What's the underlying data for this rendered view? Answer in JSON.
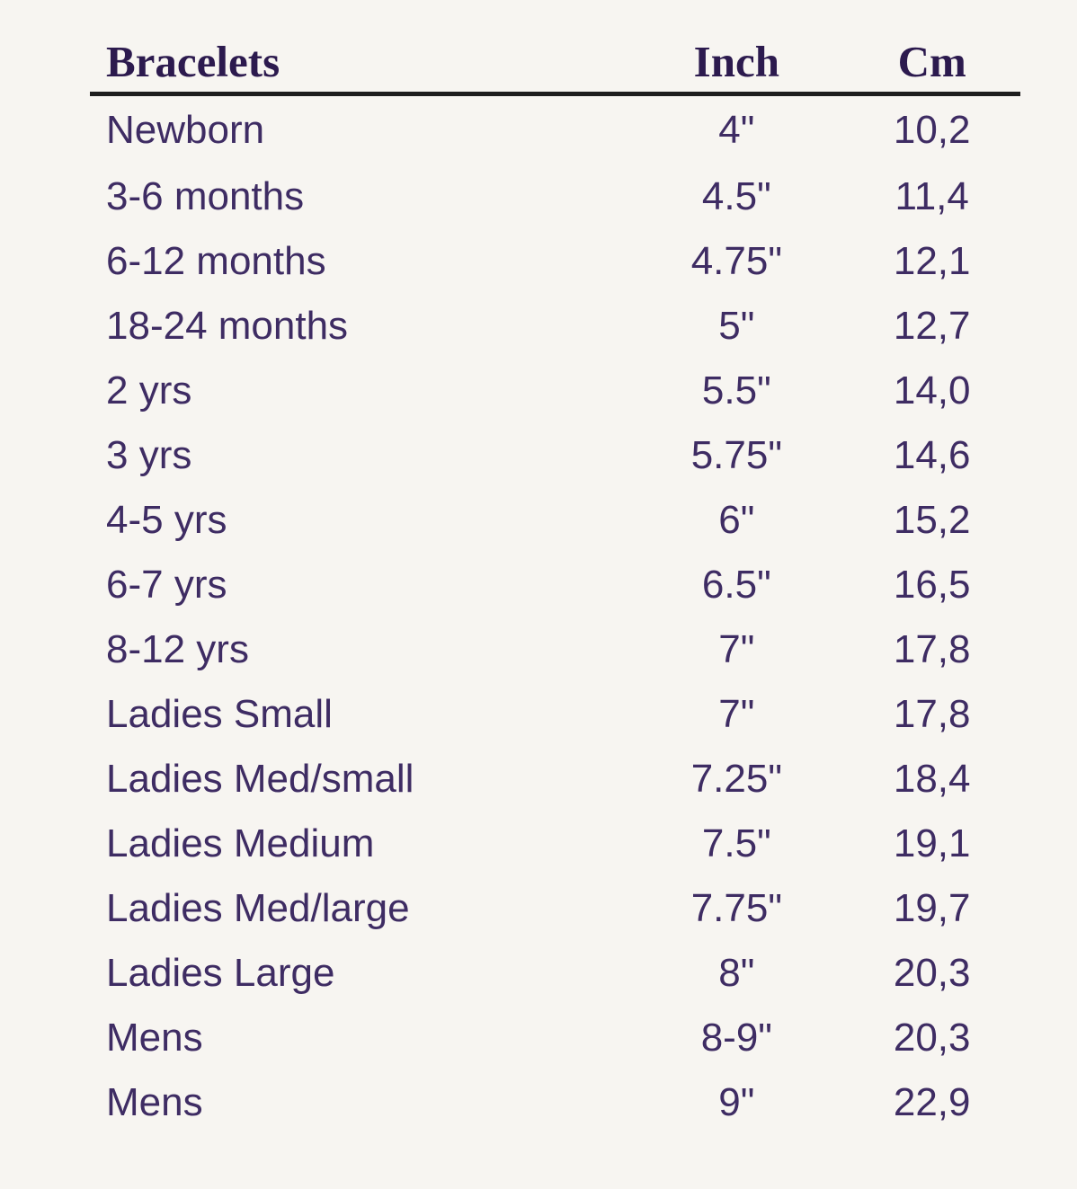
{
  "page": {
    "background": "#f7f5f1"
  },
  "colors": {
    "header_text": "#2c1a4e",
    "body_text": "#3e2c63",
    "header_rule": "#1e1e1e"
  },
  "table": {
    "headers": {
      "bracelets": "Bracelets",
      "inch": "Inch",
      "cm": "Cm"
    },
    "rows": [
      {
        "size": "Newborn",
        "inch": "4\"",
        "cm": "10,2"
      },
      {
        "size": "3-6 months",
        "inch": "4.5\"",
        "cm": "11,4"
      },
      {
        "size": "6-12 months",
        "inch": "4.75\"",
        "cm": "12,1"
      },
      {
        "size": "18-24 months",
        "inch": "5\"",
        "cm": "12,7"
      },
      {
        "size": "2 yrs",
        "inch": "5.5\"",
        "cm": "14,0"
      },
      {
        "size": "3 yrs",
        "inch": "5.75\"",
        "cm": "14,6"
      },
      {
        "size": "4-5 yrs",
        "inch": "6\"",
        "cm": "15,2"
      },
      {
        "size": "6-7 yrs",
        "inch": "6.5\"",
        "cm": "16,5"
      },
      {
        "size": "8-12 yrs",
        "inch": "7\"",
        "cm": "17,8"
      },
      {
        "size": "Ladies Small",
        "inch": "7\"",
        "cm": "17,8"
      },
      {
        "size": "Ladies Med/small",
        "inch": "7.25\"",
        "cm": "18,4"
      },
      {
        "size": "Ladies Medium",
        "inch": "7.5\"",
        "cm": "19,1"
      },
      {
        "size": "Ladies Med/large",
        "inch": "7.75\"",
        "cm": "19,7"
      },
      {
        "size": "Ladies Large",
        "inch": "8\"",
        "cm": "20,3"
      },
      {
        "size": "Mens",
        "inch": "8-9\"",
        "cm": "20,3"
      },
      {
        "size": "Mens",
        "inch": "9\"",
        "cm": "22,9"
      }
    ]
  }
}
